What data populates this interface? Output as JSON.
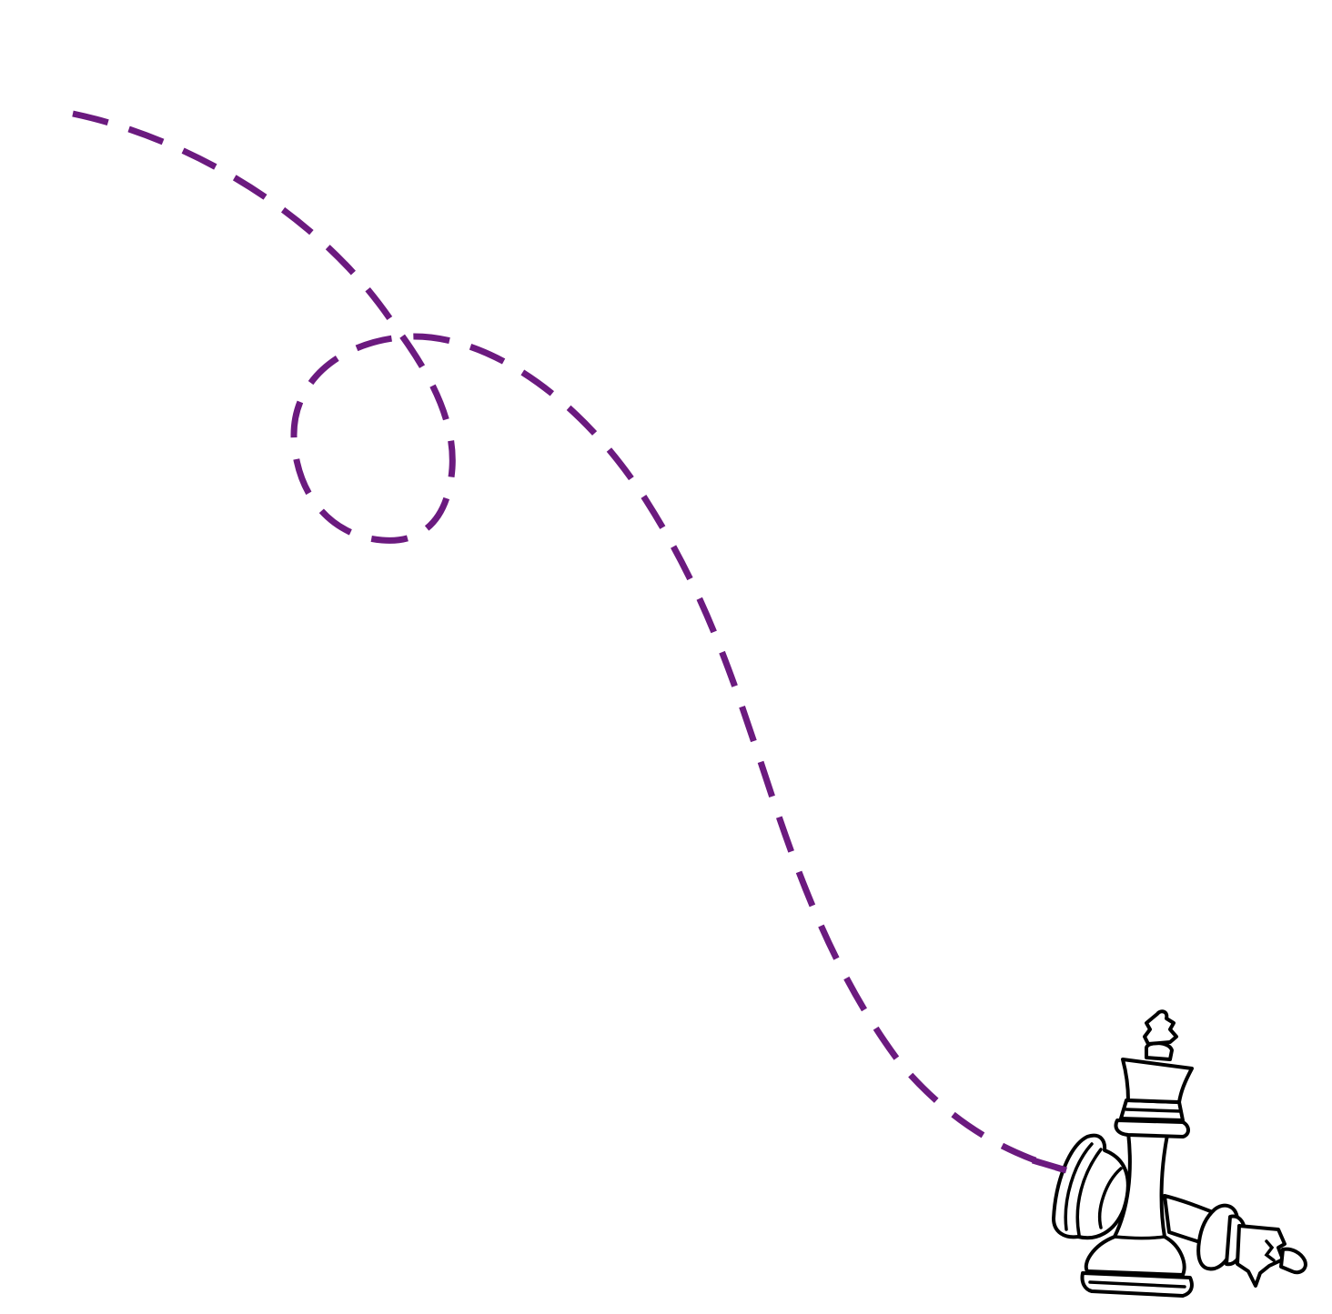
{
  "illustration": {
    "path_style": "dashed-curve-with-loop",
    "colors": {
      "path": "#6b1a7f",
      "background": "#ffffff",
      "piece_outline": "#000000",
      "piece_fill": "#ffffff"
    },
    "icons": [
      "standing-chess-king-icon",
      "fallen-chess-king-icon"
    ]
  }
}
